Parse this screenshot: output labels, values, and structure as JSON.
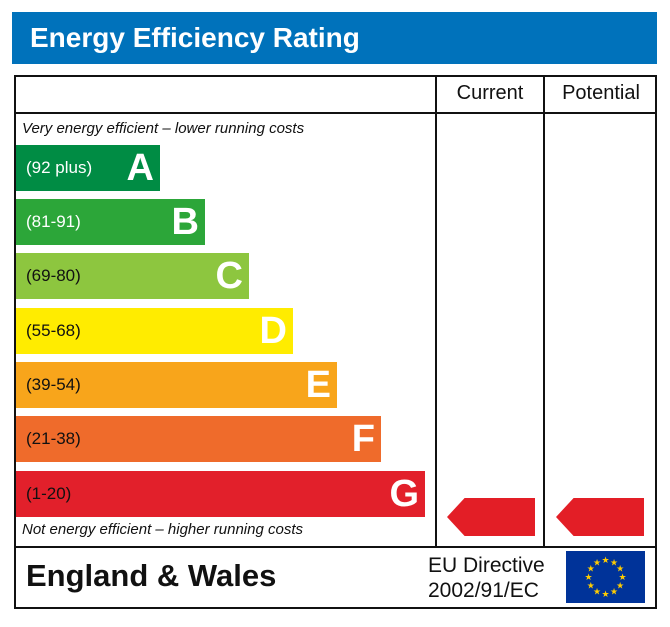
{
  "title": "Energy Efficiency Rating",
  "columns": {
    "current": "Current",
    "potential": "Potential"
  },
  "top_note": "Very energy efficient – lower running costs",
  "bottom_note": "Not energy efficient – higher running costs",
  "bands": [
    {
      "letter": "A",
      "range": "(92 plus)",
      "color": "#008c44",
      "text_color": "#ffffff"
    },
    {
      "letter": "B",
      "range": "(81-91)",
      "color": "#2ca639",
      "text_color": "#ffffff"
    },
    {
      "letter": "C",
      "range": "(69-80)",
      "color": "#8dc63f",
      "text_color": "#111111"
    },
    {
      "letter": "D",
      "range": "(55-68)",
      "color": "#ffec00",
      "text_color": "#111111"
    },
    {
      "letter": "E",
      "range": "(39-54)",
      "color": "#f8a51b",
      "text_color": "#111111"
    },
    {
      "letter": "F",
      "range": "(21-38)",
      "color": "#ef6b2b",
      "text_color": "#111111"
    },
    {
      "letter": "G",
      "range": "(1-20)",
      "color": "#e2202b",
      "text_color": "#111111"
    }
  ],
  "current_rating": {
    "band": "G",
    "color": "#e31e26"
  },
  "potential_rating": {
    "band": "G",
    "color": "#e31e26"
  },
  "footer": {
    "region": "England & Wales",
    "directive_line1": "EU Directive",
    "directive_line2": "2002/91/EC",
    "flag_icon": "eu-flag-icon"
  }
}
